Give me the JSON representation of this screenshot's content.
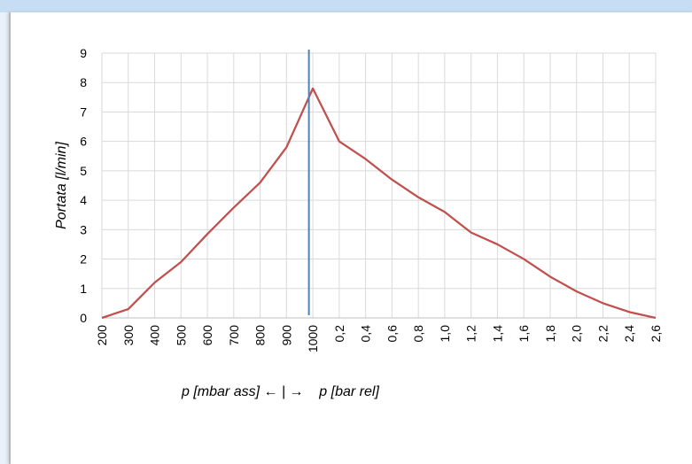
{
  "chart_data": {
    "type": "line",
    "ylabel": "Portata [l/min]",
    "xlabel": "p [mbar ass] ← | →    p [bar rel]",
    "ylim": [
      0,
      9
    ],
    "yticks": [
      "0",
      "1",
      "2",
      "3",
      "4",
      "5",
      "6",
      "7",
      "8",
      "9"
    ],
    "categories": [
      "200",
      "300",
      "400",
      "500",
      "600",
      "700",
      "800",
      "900",
      "1000",
      "0,2",
      "0,4",
      "0,6",
      "0,8",
      "1,0",
      "1,2",
      "1,4",
      "1,6",
      "1,8",
      "2,0",
      "2,2",
      "2,4",
      "2,6"
    ],
    "series": [
      {
        "values": [
          0,
          0.3,
          1.2,
          1.9,
          2.85,
          3.75,
          4.6,
          5.8,
          7.8,
          6.0,
          5.4,
          4.7,
          4.1,
          3.6,
          2.9,
          2.5,
          2.0,
          1.4,
          0.9,
          0.5,
          0.2,
          0.0
        ],
        "color": "#c0504d"
      }
    ],
    "divider_at_category_index": 7.85,
    "divider_color": "#4f81bd",
    "grid": true
  }
}
